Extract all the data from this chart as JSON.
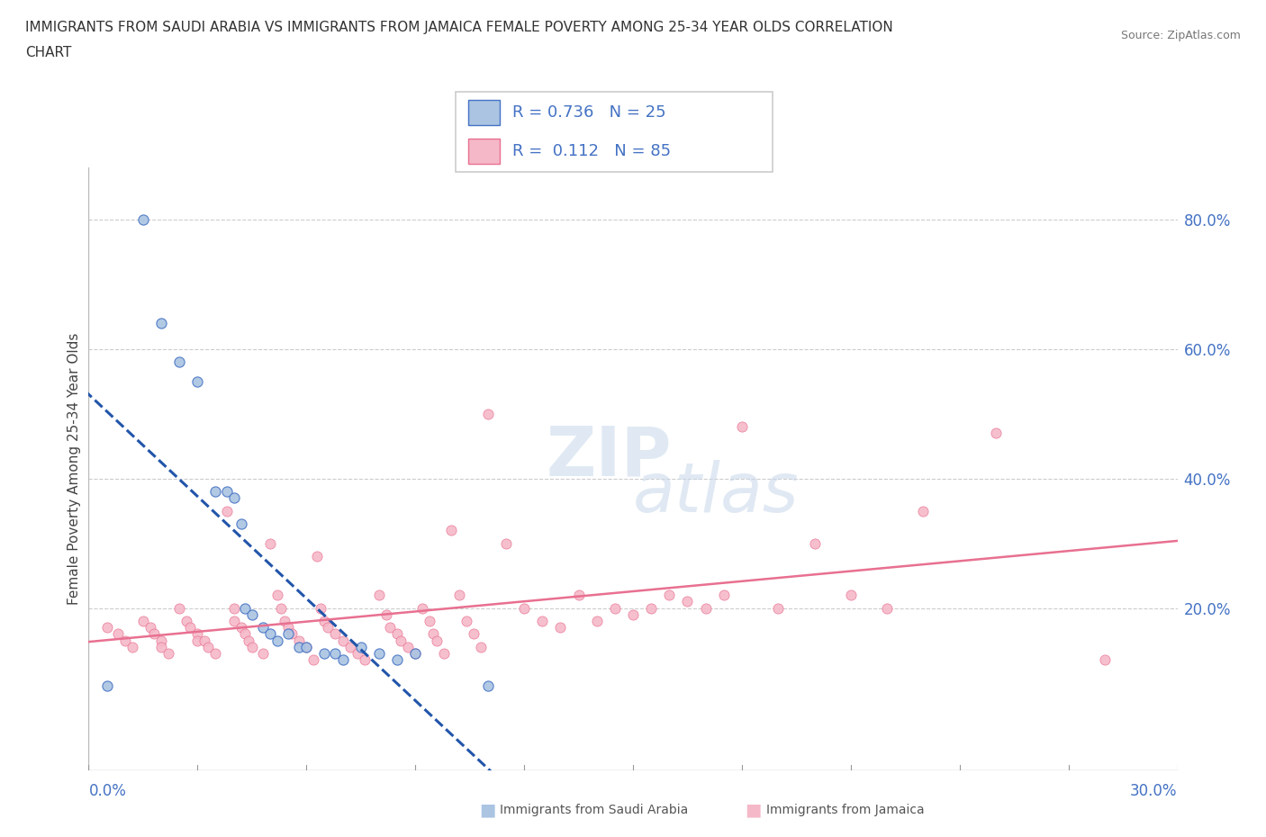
{
  "title": "IMMIGRANTS FROM SAUDI ARABIA VS IMMIGRANTS FROM JAMAICA FEMALE POVERTY AMONG 25-34 YEAR OLDS CORRELATION\nCHART",
  "source": "Source: ZipAtlas.com",
  "ylabel": "Female Poverty Among 25-34 Year Olds",
  "yticks": [
    "20.0%",
    "40.0%",
    "60.0%",
    "80.0%"
  ],
  "ytick_vals": [
    0.2,
    0.4,
    0.6,
    0.8
  ],
  "xlim": [
    0.0,
    0.3
  ],
  "ylim": [
    -0.05,
    0.88
  ],
  "watermark_top": "ZIP",
  "watermark_bot": "atlas",
  "saudi_color": "#aac4e2",
  "saudi_edge_color": "#4472c4",
  "jamaica_color": "#f5b8c8",
  "jamaica_edge_color": "#e87090",
  "saudi_line_color": "#2255aa",
  "jamaica_line_color": "#e87090",
  "saudi_scatter": [
    [
      0.005,
      0.08
    ],
    [
      0.015,
      0.8
    ],
    [
      0.02,
      0.64
    ],
    [
      0.025,
      0.58
    ],
    [
      0.03,
      0.55
    ],
    [
      0.035,
      0.38
    ],
    [
      0.038,
      0.38
    ],
    [
      0.04,
      0.37
    ],
    [
      0.042,
      0.33
    ],
    [
      0.043,
      0.2
    ],
    [
      0.045,
      0.19
    ],
    [
      0.048,
      0.17
    ],
    [
      0.05,
      0.16
    ],
    [
      0.052,
      0.15
    ],
    [
      0.055,
      0.16
    ],
    [
      0.058,
      0.14
    ],
    [
      0.06,
      0.14
    ],
    [
      0.065,
      0.13
    ],
    [
      0.068,
      0.13
    ],
    [
      0.07,
      0.12
    ],
    [
      0.075,
      0.14
    ],
    [
      0.08,
      0.13
    ],
    [
      0.085,
      0.12
    ],
    [
      0.09,
      0.13
    ],
    [
      0.11,
      0.08
    ]
  ],
  "jamaica_scatter": [
    [
      0.005,
      0.17
    ],
    [
      0.008,
      0.16
    ],
    [
      0.01,
      0.15
    ],
    [
      0.012,
      0.14
    ],
    [
      0.015,
      0.18
    ],
    [
      0.017,
      0.17
    ],
    [
      0.018,
      0.16
    ],
    [
      0.02,
      0.15
    ],
    [
      0.02,
      0.14
    ],
    [
      0.022,
      0.13
    ],
    [
      0.025,
      0.2
    ],
    [
      0.027,
      0.18
    ],
    [
      0.028,
      0.17
    ],
    [
      0.03,
      0.16
    ],
    [
      0.03,
      0.15
    ],
    [
      0.032,
      0.15
    ],
    [
      0.033,
      0.14
    ],
    [
      0.035,
      0.13
    ],
    [
      0.038,
      0.35
    ],
    [
      0.04,
      0.2
    ],
    [
      0.04,
      0.18
    ],
    [
      0.042,
      0.17
    ],
    [
      0.043,
      0.16
    ],
    [
      0.044,
      0.15
    ],
    [
      0.045,
      0.14
    ],
    [
      0.048,
      0.13
    ],
    [
      0.05,
      0.3
    ],
    [
      0.052,
      0.22
    ],
    [
      0.053,
      0.2
    ],
    [
      0.054,
      0.18
    ],
    [
      0.055,
      0.17
    ],
    [
      0.056,
      0.16
    ],
    [
      0.058,
      0.15
    ],
    [
      0.06,
      0.14
    ],
    [
      0.062,
      0.12
    ],
    [
      0.063,
      0.28
    ],
    [
      0.064,
      0.2
    ],
    [
      0.065,
      0.18
    ],
    [
      0.066,
      0.17
    ],
    [
      0.068,
      0.16
    ],
    [
      0.07,
      0.15
    ],
    [
      0.072,
      0.14
    ],
    [
      0.074,
      0.13
    ],
    [
      0.076,
      0.12
    ],
    [
      0.08,
      0.22
    ],
    [
      0.082,
      0.19
    ],
    [
      0.083,
      0.17
    ],
    [
      0.085,
      0.16
    ],
    [
      0.086,
      0.15
    ],
    [
      0.088,
      0.14
    ],
    [
      0.09,
      0.13
    ],
    [
      0.092,
      0.2
    ],
    [
      0.094,
      0.18
    ],
    [
      0.095,
      0.16
    ],
    [
      0.096,
      0.15
    ],
    [
      0.098,
      0.13
    ],
    [
      0.1,
      0.32
    ],
    [
      0.102,
      0.22
    ],
    [
      0.104,
      0.18
    ],
    [
      0.106,
      0.16
    ],
    [
      0.108,
      0.14
    ],
    [
      0.11,
      0.5
    ],
    [
      0.115,
      0.3
    ],
    [
      0.12,
      0.2
    ],
    [
      0.125,
      0.18
    ],
    [
      0.13,
      0.17
    ],
    [
      0.135,
      0.22
    ],
    [
      0.14,
      0.18
    ],
    [
      0.145,
      0.2
    ],
    [
      0.15,
      0.19
    ],
    [
      0.155,
      0.2
    ],
    [
      0.16,
      0.22
    ],
    [
      0.165,
      0.21
    ],
    [
      0.17,
      0.2
    ],
    [
      0.175,
      0.22
    ],
    [
      0.18,
      0.48
    ],
    [
      0.19,
      0.2
    ],
    [
      0.2,
      0.3
    ],
    [
      0.21,
      0.22
    ],
    [
      0.22,
      0.2
    ],
    [
      0.23,
      0.35
    ],
    [
      0.25,
      0.47
    ],
    [
      0.28,
      0.12
    ]
  ]
}
